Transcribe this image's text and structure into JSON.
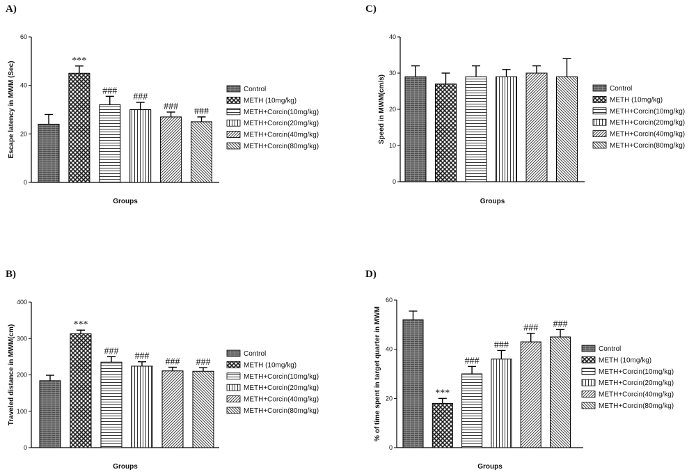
{
  "legend": {
    "entries": [
      "Control",
      "METH (10mg/kg)",
      "METH+Corcin(10mg/kg)",
      "METH+Corcin(20mg/kg)",
      "METH+Corcin(40mg/kg)",
      "METH+Corcin(80mg/kg)"
    ]
  },
  "chart_data": [
    {
      "panel": "A)",
      "type": "bar",
      "categories": [
        "Control",
        "METH (10mg/kg)",
        "METH+Corcin(10mg/kg)",
        "METH+Corcin(20mg/kg)",
        "METH+Corcin(40mg/kg)",
        "METH+Corcin(80mg/kg)"
      ],
      "values": [
        24,
        45,
        32,
        30,
        27,
        25
      ],
      "errors": [
        4,
        3,
        3.5,
        3,
        2,
        2
      ],
      "annotations": [
        "",
        "***",
        "###",
        "###",
        "###",
        "###"
      ],
      "xlabel": "Groups",
      "ylabel": "Escape latency in MWM (Sec)",
      "ylim": [
        0,
        60
      ],
      "yticks": [
        0,
        20,
        40,
        60
      ],
      "grid": false,
      "legend_position": "right"
    },
    {
      "panel": "B)",
      "type": "bar",
      "categories": [
        "Control",
        "METH (10mg/kg)",
        "METH+Corcin(10mg/kg)",
        "METH+Corcin(20mg/kg)",
        "METH+Corcin(40mg/kg)",
        "METH+Corcin(80mg/kg)"
      ],
      "values": [
        184,
        313,
        235,
        224,
        211,
        210
      ],
      "errors": [
        15,
        10,
        15,
        12,
        10,
        10
      ],
      "annotations": [
        "",
        "***",
        "###",
        "###",
        "###",
        "###"
      ],
      "xlabel": "Groups",
      "ylabel": "Traveled distance in MWM(cm)",
      "ylim": [
        0,
        400
      ],
      "yticks": [
        0,
        100,
        200,
        300,
        400
      ],
      "grid": false,
      "legend_position": "right"
    },
    {
      "panel": "C)",
      "type": "bar",
      "categories": [
        "Control",
        "METH (10mg/kg)",
        "METH+Corcin(10mg/kg)",
        "METH+Corcin(20mg/kg)",
        "METH+Corcin(40mg/kg)",
        "METH+Corcin(80mg/kg)"
      ],
      "values": [
        29,
        27,
        29,
        29,
        30,
        29
      ],
      "errors": [
        3,
        3,
        3,
        2,
        2,
        5
      ],
      "annotations": [
        "",
        "",
        "",
        "",
        "",
        ""
      ],
      "xlabel": "Groups",
      "ylabel": "Speed in MWM(cm/s)",
      "ylim": [
        0,
        40
      ],
      "yticks": [
        0,
        10,
        20,
        30,
        40
      ],
      "grid": false,
      "legend_position": "right"
    },
    {
      "panel": "D)",
      "type": "bar",
      "categories": [
        "Control",
        "METH (10mg/kg)",
        "METH+Corcin(10mg/kg)",
        "METH+Corcin(20mg/kg)",
        "METH+Corcin(40mg/kg)",
        "METH+Corcin(80mg/kg)"
      ],
      "values": [
        52,
        18,
        30,
        36,
        43,
        45
      ],
      "errors": [
        3.5,
        2,
        3,
        3.5,
        3.5,
        3
      ],
      "annotations": [
        "",
        "***",
        "###",
        "###",
        "###",
        "###"
      ],
      "xlabel": "Groups",
      "ylabel": "% of time spent in target quarter in MWM",
      "ylim": [
        0,
        60
      ],
      "yticks": [
        0,
        20,
        40,
        60
      ],
      "grid": false,
      "legend_position": "right"
    }
  ]
}
